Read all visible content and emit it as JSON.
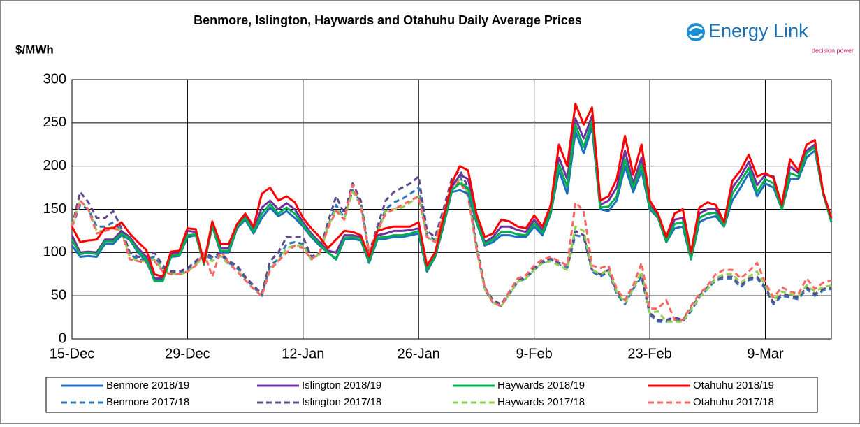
{
  "chart_data": {
    "type": "line",
    "title": "Benmore, Islington, Haywards and Otahuhu Daily Average Prices",
    "ylabel": "$/MWh",
    "categories": [
      "15-Dec",
      null,
      null,
      null,
      null,
      null,
      null,
      null,
      null,
      null,
      null,
      null,
      null,
      null,
      "29-Dec",
      null,
      null,
      null,
      null,
      null,
      null,
      null,
      null,
      null,
      null,
      null,
      null,
      null,
      "12-Jan",
      null,
      null,
      null,
      null,
      null,
      null,
      null,
      null,
      null,
      null,
      null,
      null,
      null,
      "26-Jan",
      null,
      null,
      null,
      null,
      null,
      null,
      null,
      null,
      null,
      null,
      null,
      null,
      null,
      "9-Feb",
      null,
      null,
      null,
      null,
      null,
      null,
      null,
      null,
      null,
      null,
      null,
      null,
      null,
      "23-Feb",
      null,
      null,
      null,
      null,
      null,
      null,
      null,
      null,
      null,
      null,
      null,
      null,
      null,
      "9-Mar",
      null,
      null,
      null,
      null,
      null,
      null,
      null,
      null
    ],
    "ylim": [
      0,
      300
    ],
    "yticks": [
      0,
      50,
      100,
      150,
      200,
      250,
      300
    ],
    "grid": true,
    "series": [
      {
        "name": "Benmore 2018/19",
        "color": "#1f6fbf",
        "dashed": false,
        "values": [
          108,
          95,
          96,
          95,
          110,
          110,
          120,
          115,
          100,
          90,
          68,
          68,
          95,
          96,
          118,
          120,
          88,
          130,
          100,
          100,
          128,
          138,
          122,
          140,
          152,
          142,
          148,
          140,
          130,
          118,
          108,
          100,
          92,
          115,
          116,
          114,
          88,
          115,
          116,
          118,
          118,
          120,
          122,
          78,
          95,
          130,
          170,
          172,
          168,
          135,
          108,
          112,
          120,
          120,
          118,
          118,
          130,
          120,
          145,
          195,
          168,
          240,
          215,
          245,
          150,
          148,
          160,
          200,
          170,
          195,
          150,
          140,
          112,
          128,
          130,
          92,
          135,
          140,
          142,
          130,
          160,
          175,
          192,
          165,
          180,
          175,
          150,
          185,
          185,
          210,
          218,
          168,
          135
        ]
      },
      {
        "name": "Islington 2018/19",
        "color": "#7030a0",
        "dashed": false,
        "values": [
          120,
          100,
          101,
          100,
          115,
          115,
          125,
          118,
          105,
          95,
          70,
          70,
          98,
          100,
          125,
          124,
          88,
          133,
          105,
          105,
          131,
          142,
          126,
          152,
          160,
          150,
          157,
          150,
          135,
          122,
          112,
          102,
          100,
          120,
          120,
          118,
          92,
          120,
          122,
          125,
          125,
          126,
          128,
          82,
          98,
          135,
          175,
          190,
          185,
          140,
          112,
          118,
          130,
          130,
          126,
          124,
          138,
          126,
          150,
          210,
          185,
          255,
          232,
          258,
          155,
          160,
          175,
          218,
          180,
          210,
          155,
          142,
          115,
          138,
          140,
          95,
          145,
          150,
          150,
          133,
          175,
          188,
          205,
          178,
          190,
          188,
          152,
          200,
          192,
          218,
          225,
          170,
          138
        ]
      },
      {
        "name": "Haywards 2018/19",
        "color": "#00b050",
        "dashed": false,
        "values": [
          115,
          98,
          100,
          98,
          113,
          113,
          122,
          116,
          102,
          92,
          67,
          67,
          96,
          97,
          120,
          121,
          86,
          131,
          102,
          102,
          130,
          140,
          124,
          145,
          156,
          145,
          152,
          145,
          132,
          120,
          110,
          100,
          93,
          117,
          118,
          115,
          90,
          117,
          118,
          120,
          120,
          122,
          125,
          80,
          96,
          132,
          172,
          180,
          175,
          137,
          110,
          115,
          124,
          124,
          121,
          120,
          134,
          123,
          147,
          202,
          176,
          248,
          222,
          252,
          152,
          153,
          165,
          208,
          175,
          202,
          152,
          141,
          113,
          133,
          135,
          93,
          140,
          145,
          146,
          131,
          168,
          182,
          198,
          170,
          185,
          180,
          150,
          192,
          188,
          215,
          222,
          168,
          136
        ]
      },
      {
        "name": "Otahuhu 2018/19",
        "color": "#ff0000",
        "dashed": false,
        "values": [
          130,
          112,
          114,
          115,
          128,
          128,
          135,
          122,
          112,
          103,
          75,
          72,
          101,
          102,
          128,
          127,
          88,
          136,
          110,
          110,
          133,
          145,
          130,
          168,
          175,
          160,
          165,
          158,
          140,
          128,
          118,
          105,
          115,
          125,
          124,
          120,
          95,
          125,
          128,
          130,
          130,
          130,
          135,
          85,
          100,
          140,
          180,
          200,
          195,
          145,
          118,
          122,
          138,
          136,
          130,
          128,
          143,
          130,
          155,
          225,
          200,
          272,
          248,
          268,
          160,
          165,
          185,
          235,
          190,
          225,
          160,
          145,
          118,
          145,
          150,
          100,
          152,
          158,
          155,
          135,
          183,
          195,
          213,
          188,
          192,
          186,
          155,
          208,
          195,
          225,
          230,
          170,
          140
        ]
      },
      {
        "name": "Benmore 2017/18",
        "color": "#2e75b6",
        "dashed": true,
        "values": [
          130,
          155,
          150,
          130,
          130,
          135,
          125,
          98,
          92,
          92,
          95,
          82,
          78,
          76,
          80,
          88,
          98,
          92,
          98,
          88,
          82,
          70,
          60,
          50,
          85,
          92,
          110,
          112,
          110,
          92,
          98,
          130,
          155,
          140,
          172,
          158,
          98,
          125,
          150,
          158,
          162,
          168,
          175,
          120,
          115,
          145,
          178,
          188,
          170,
          105,
          58,
          42,
          38,
          52,
          66,
          70,
          80,
          88,
          92,
          86,
          82,
          120,
          118,
          78,
          72,
          78,
          52,
          40,
          58,
          72,
          28,
          20,
          20,
          22,
          20,
          32,
          48,
          58,
          68,
          70,
          70,
          60,
          68,
          70,
          58,
          40,
          50,
          48,
          46,
          58,
          50,
          56,
          58
        ]
      },
      {
        "name": "Islington 2017/18",
        "color": "#5f4b8b",
        "dashed": true,
        "values": [
          130,
          170,
          158,
          140,
          140,
          148,
          128,
          100,
          95,
          95,
          100,
          85,
          78,
          78,
          82,
          90,
          100,
          95,
          100,
          90,
          85,
          72,
          62,
          52,
          90,
          100,
          118,
          118,
          118,
          95,
          100,
          135,
          165,
          145,
          180,
          160,
          100,
          130,
          160,
          170,
          175,
          180,
          188,
          125,
          118,
          150,
          185,
          195,
          175,
          110,
          60,
          45,
          40,
          55,
          68,
          72,
          82,
          90,
          93,
          88,
          85,
          125,
          120,
          80,
          75,
          80,
          55,
          45,
          60,
          75,
          30,
          22,
          22,
          25,
          22,
          35,
          50,
          60,
          70,
          72,
          72,
          62,
          70,
          72,
          60,
          42,
          52,
          50,
          48,
          60,
          52,
          58,
          60
        ]
      },
      {
        "name": "Haywards 2017/18",
        "color": "#92d050",
        "dashed": true,
        "values": [
          132,
          160,
          150,
          125,
          125,
          130,
          125,
          95,
          90,
          90,
          92,
          80,
          76,
          74,
          78,
          86,
          95,
          90,
          96,
          86,
          80,
          68,
          58,
          50,
          82,
          90,
          105,
          108,
          108,
          92,
          98,
          130,
          150,
          140,
          170,
          155,
          98,
          122,
          148,
          150,
          152,
          158,
          165,
          118,
          112,
          142,
          175,
          185,
          168,
          105,
          58,
          42,
          38,
          52,
          66,
          70,
          80,
          88,
          90,
          85,
          80,
          130,
          125,
          80,
          75,
          80,
          55,
          42,
          58,
          78,
          30,
          32,
          20,
          20,
          20,
          34,
          48,
          58,
          70,
          75,
          75,
          65,
          72,
          78,
          62,
          45,
          55,
          52,
          50,
          62,
          55,
          60,
          62
        ]
      },
      {
        "name": "Otahuhu 2017/18",
        "color": "#ff6666",
        "dashed": true,
        "values": [
          130,
          160,
          150,
          122,
          125,
          128,
          125,
          92,
          90,
          88,
          90,
          78,
          75,
          75,
          78,
          85,
          100,
          72,
          102,
          88,
          78,
          68,
          58,
          50,
          80,
          90,
          100,
          108,
          105,
          92,
          100,
          128,
          148,
          138,
          178,
          152,
          100,
          125,
          145,
          150,
          155,
          160,
          165,
          118,
          112,
          145,
          172,
          182,
          165,
          105,
          60,
          42,
          38,
          55,
          70,
          74,
          85,
          92,
          95,
          90,
          85,
          158,
          148,
          85,
          82,
          85,
          58,
          45,
          62,
          88,
          35,
          35,
          45,
          22,
          22,
          38,
          52,
          62,
          75,
          80,
          80,
          70,
          78,
          88,
          65,
          48,
          60,
          55,
          52,
          70,
          58,
          65,
          68
        ]
      }
    ]
  },
  "logo": {
    "text": "Energy Link",
    "tagline": "decision power"
  }
}
